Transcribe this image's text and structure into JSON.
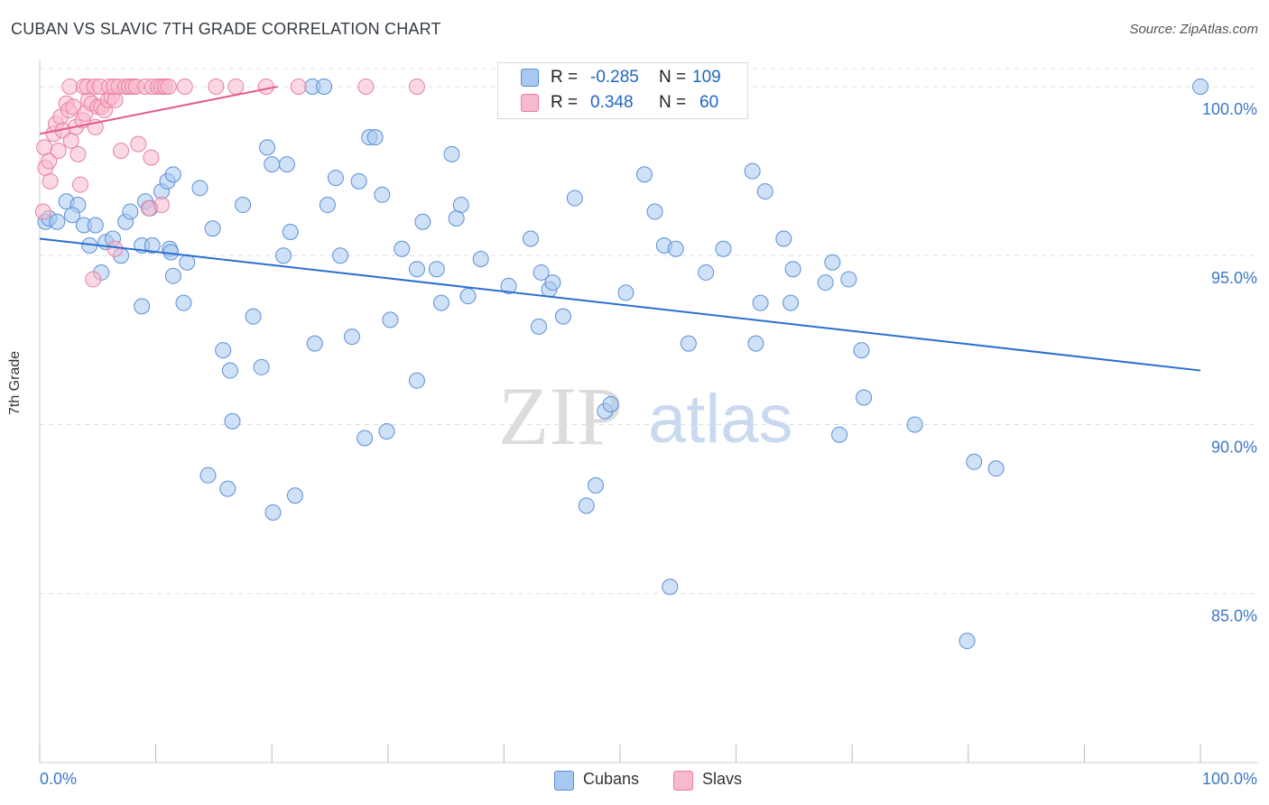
{
  "header": {
    "title": "CUBAN VS SLAVIC 7TH GRADE CORRELATION CHART",
    "source": "Source: ZipAtlas.com"
  },
  "legend": {
    "r_label": "R =",
    "n_label": "N =",
    "series": [
      {
        "name": "Cubans",
        "r": "-0.285",
        "n": "109"
      },
      {
        "name": "Slavs",
        "r": "0.348",
        "n": "60"
      }
    ]
  },
  "watermark": {
    "zip": "ZIP",
    "atlas": "atlas"
  },
  "colors": {
    "cubans_fill": "#a8c8f0",
    "cubans_stroke": "#5b8fd6",
    "cubans_line": "#2a6fcf",
    "slavs_fill": "#f7b9cc",
    "slavs_stroke": "#e87fa0",
    "slavs_line": "#e45c88",
    "axis_text": "#3a78c8",
    "grid": "#dddddd"
  },
  "chart_data": {
    "type": "scatter",
    "title": "CUBAN VS SLAVIC 7TH GRADE CORRELATION CHART",
    "xlabel": "",
    "ylabel": "7th Grade",
    "xlim": [
      0,
      100
    ],
    "ylim": [
      80.0,
      100.8
    ],
    "x_tick_labels": [
      "0.0%",
      "100.0%"
    ],
    "y_ticks": [
      {
        "value": 100,
        "label": "100.0%"
      },
      {
        "value": 95,
        "label": "95.0%"
      },
      {
        "value": 90,
        "label": "90.0%"
      },
      {
        "value": 85,
        "label": "85.0%"
      }
    ],
    "series": [
      {
        "name": "Cubans",
        "trend": {
          "x": [
            0,
            100
          ],
          "y": [
            95.5,
            91.6
          ]
        },
        "points": [
          [
            0.5,
            96.0
          ],
          [
            0.8,
            96.1
          ],
          [
            1.5,
            96.0
          ],
          [
            2.3,
            96.6
          ],
          [
            3.3,
            96.5
          ],
          [
            2.8,
            96.2
          ],
          [
            3.8,
            95.9
          ],
          [
            4.8,
            95.9
          ],
          [
            5.7,
            95.4
          ],
          [
            4.3,
            95.3
          ],
          [
            6.3,
            95.5
          ],
          [
            7.0,
            95.0
          ],
          [
            5.3,
            94.5
          ],
          [
            7.4,
            96.0
          ],
          [
            7.8,
            96.3
          ],
          [
            9.1,
            96.6
          ],
          [
            9.5,
            96.4
          ],
          [
            8.8,
            95.3
          ],
          [
            9.7,
            95.3
          ],
          [
            11.2,
            95.2
          ],
          [
            10.5,
            96.9
          ],
          [
            11.0,
            97.2
          ],
          [
            11.5,
            97.4
          ],
          [
            13.8,
            97.0
          ],
          [
            12.7,
            94.8
          ],
          [
            11.5,
            94.4
          ],
          [
            12.4,
            93.6
          ],
          [
            8.8,
            93.5
          ],
          [
            14.9,
            95.8
          ],
          [
            17.5,
            96.5
          ],
          [
            15.8,
            92.2
          ],
          [
            16.4,
            91.6
          ],
          [
            18.4,
            93.2
          ],
          [
            19.1,
            91.7
          ],
          [
            19.6,
            98.2
          ],
          [
            20.0,
            97.7
          ],
          [
            21.3,
            97.7
          ],
          [
            21.0,
            95.0
          ],
          [
            21.6,
            95.7
          ],
          [
            23.5,
            100.0
          ],
          [
            24.5,
            100.0
          ],
          [
            24.8,
            96.5
          ],
          [
            25.5,
            97.3
          ],
          [
            25.9,
            95.0
          ],
          [
            26.9,
            92.6
          ],
          [
            27.5,
            97.2
          ],
          [
            28.4,
            98.5
          ],
          [
            28.9,
            98.5
          ],
          [
            29.5,
            96.8
          ],
          [
            30.2,
            93.1
          ],
          [
            29.9,
            89.8
          ],
          [
            28.0,
            89.6
          ],
          [
            23.7,
            92.4
          ],
          [
            22.0,
            87.9
          ],
          [
            20.1,
            87.4
          ],
          [
            16.6,
            90.1
          ],
          [
            16.2,
            88.1
          ],
          [
            14.5,
            88.5
          ],
          [
            31.2,
            95.2
          ],
          [
            32.5,
            94.6
          ],
          [
            32.5,
            91.3
          ],
          [
            33.0,
            96.0
          ],
          [
            34.2,
            94.6
          ],
          [
            34.6,
            93.6
          ],
          [
            35.5,
            98.0
          ],
          [
            35.9,
            96.1
          ],
          [
            36.3,
            96.5
          ],
          [
            36.9,
            93.8
          ],
          [
            38.0,
            94.9
          ],
          [
            40.4,
            94.1
          ],
          [
            42.3,
            95.5
          ],
          [
            43.0,
            92.9
          ],
          [
            43.2,
            94.5
          ],
          [
            43.9,
            94.0
          ],
          [
            44.2,
            94.2
          ],
          [
            45.1,
            93.2
          ],
          [
            46.1,
            96.7
          ],
          [
            48.7,
            90.4
          ],
          [
            49.2,
            90.6
          ],
          [
            47.9,
            88.2
          ],
          [
            47.1,
            87.6
          ],
          [
            50.5,
            93.9
          ],
          [
            52.1,
            97.4
          ],
          [
            53.0,
            96.3
          ],
          [
            53.8,
            95.3
          ],
          [
            54.8,
            95.2
          ],
          [
            55.9,
            92.4
          ],
          [
            57.4,
            94.5
          ],
          [
            58.9,
            95.2
          ],
          [
            61.7,
            92.4
          ],
          [
            62.1,
            93.6
          ],
          [
            61.4,
            97.5
          ],
          [
            62.5,
            96.9
          ],
          [
            64.1,
            95.5
          ],
          [
            64.7,
            93.6
          ],
          [
            64.9,
            94.6
          ],
          [
            67.7,
            94.2
          ],
          [
            68.3,
            94.8
          ],
          [
            69.7,
            94.3
          ],
          [
            70.8,
            92.2
          ],
          [
            71.0,
            90.8
          ],
          [
            68.9,
            89.7
          ],
          [
            75.4,
            90.0
          ],
          [
            80.5,
            88.9
          ],
          [
            82.4,
            88.7
          ],
          [
            79.9,
            83.6
          ],
          [
            100.0,
            100.0
          ],
          [
            54.3,
            85.2
          ],
          [
            11.3,
            95.1
          ]
        ]
      },
      {
        "name": "Slavs",
        "trend": {
          "x": [
            0,
            20.5
          ],
          "y": [
            98.6,
            100.0
          ]
        },
        "points": [
          [
            0.3,
            96.3
          ],
          [
            0.4,
            98.2
          ],
          [
            0.5,
            97.6
          ],
          [
            0.8,
            97.8
          ],
          [
            0.9,
            97.2
          ],
          [
            1.2,
            98.6
          ],
          [
            1.4,
            98.9
          ],
          [
            1.6,
            98.1
          ],
          [
            1.8,
            99.1
          ],
          [
            2.0,
            98.7
          ],
          [
            2.3,
            99.5
          ],
          [
            2.5,
            99.3
          ],
          [
            2.7,
            98.4
          ],
          [
            2.9,
            99.4
          ],
          [
            3.1,
            98.8
          ],
          [
            3.3,
            98.0
          ],
          [
            3.5,
            97.1
          ],
          [
            3.7,
            99.0
          ],
          [
            3.9,
            99.2
          ],
          [
            4.2,
            99.6
          ],
          [
            4.5,
            99.5
          ],
          [
            4.8,
            98.8
          ],
          [
            5.0,
            99.4
          ],
          [
            5.3,
            99.4
          ],
          [
            5.6,
            99.3
          ],
          [
            5.9,
            99.6
          ],
          [
            6.2,
            99.7
          ],
          [
            6.5,
            99.6
          ],
          [
            2.6,
            100.0
          ],
          [
            3.8,
            100.0
          ],
          [
            4.1,
            100.0
          ],
          [
            4.7,
            100.0
          ],
          [
            5.2,
            100.0
          ],
          [
            6.0,
            100.0
          ],
          [
            6.4,
            100.0
          ],
          [
            6.8,
            100.0
          ],
          [
            7.4,
            100.0
          ],
          [
            7.7,
            100.0
          ],
          [
            8.0,
            100.0
          ],
          [
            8.3,
            100.0
          ],
          [
            9.1,
            100.0
          ],
          [
            9.7,
            100.0
          ],
          [
            10.2,
            100.0
          ],
          [
            10.5,
            100.0
          ],
          [
            10.8,
            100.0
          ],
          [
            11.1,
            100.0
          ],
          [
            12.5,
            100.0
          ],
          [
            15.2,
            100.0
          ],
          [
            16.9,
            100.0
          ],
          [
            19.5,
            100.0
          ],
          [
            22.3,
            100.0
          ],
          [
            28.1,
            100.0
          ],
          [
            32.5,
            100.0
          ],
          [
            7.0,
            98.1
          ],
          [
            8.5,
            98.3
          ],
          [
            9.6,
            97.9
          ],
          [
            4.6,
            94.3
          ],
          [
            6.5,
            95.2
          ],
          [
            9.4,
            96.4
          ],
          [
            10.5,
            96.5
          ]
        ]
      }
    ]
  }
}
